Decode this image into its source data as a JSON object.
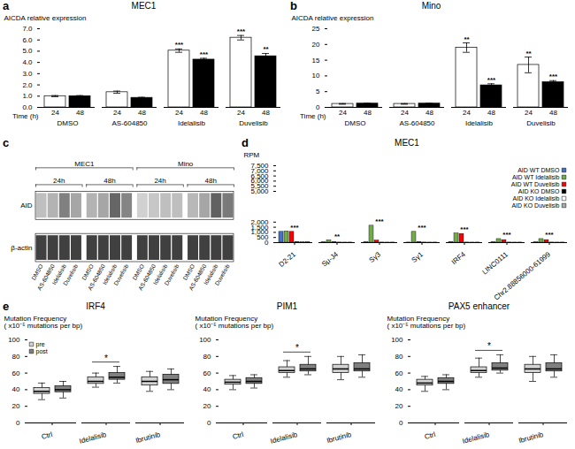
{
  "chart_data": [
    {
      "type": "bar",
      "panel_label": "a",
      "title": "MEC1",
      "ylabel": "AICDA relative expression",
      "xlabel": "Time (h)",
      "categories": [
        "DMSO",
        "AS-604850",
        "Idelalisib",
        "Duvelisib"
      ],
      "series": [
        {
          "name": "24",
          "color": "#FFFFFF",
          "values": [
            1.0,
            1.35,
            5.05,
            6.2
          ],
          "errors": [
            0.05,
            0.1,
            0.15,
            0.2
          ],
          "significance": [
            null,
            null,
            "***",
            "***"
          ]
        },
        {
          "name": "48",
          "color": "#000000",
          "values": [
            1.0,
            0.85,
            4.25,
            4.55
          ],
          "errors": [
            0.05,
            0.05,
            0.12,
            0.25
          ],
          "significance": [
            null,
            null,
            "***",
            "**"
          ]
        }
      ],
      "ylim": [
        0,
        7
      ],
      "yticks": [
        0,
        1,
        2,
        3,
        4,
        5,
        6,
        7
      ]
    },
    {
      "type": "bar",
      "panel_label": "b",
      "title": "Mino",
      "ylabel": "AICDA relative expression",
      "xlabel": "Time (h)",
      "categories": [
        "DMSO",
        "AS-604850",
        "Idelalisib",
        "Duvelisib"
      ],
      "series": [
        {
          "name": "24",
          "color": "#FFFFFF",
          "values": [
            1.1,
            1.1,
            19.0,
            13.5
          ],
          "errors": [
            0.1,
            0.1,
            1.5,
            2.5
          ],
          "significance": [
            null,
            null,
            "**",
            "**"
          ]
        },
        {
          "name": "48",
          "color": "#000000",
          "values": [
            1.2,
            1.2,
            7.0,
            8.0
          ],
          "errors": [
            0.1,
            0.1,
            0.5,
            0.5
          ],
          "significance": [
            null,
            null,
            "***",
            "***"
          ]
        }
      ],
      "ylim": [
        0,
        25
      ],
      "yticks": [
        0,
        5,
        10,
        15,
        20,
        25
      ]
    },
    {
      "type": "blot",
      "panel_label": "c",
      "groups": [
        {
          "name": "MEC1",
          "times": [
            "24h",
            "48h"
          ]
        },
        {
          "name": "Mino",
          "times": [
            "24h",
            "48h"
          ]
        }
      ],
      "lanes": [
        "DMSO",
        "AS-604850",
        "Idelalisib",
        "Duvelisib"
      ],
      "bands": [
        {
          "name": "AID",
          "intensities": [
            [
              0.75,
              0.7,
              0.5,
              0.65
            ],
            [
              0.7,
              0.65,
              0.4,
              0.52
            ],
            [
              0.82,
              0.78,
              0.75,
              0.75
            ],
            [
              0.72,
              0.65,
              0.38,
              0.48
            ]
          ]
        },
        {
          "name": "β-actin",
          "intensities": [
            [
              0.25,
              0.25,
              0.25,
              0.25
            ],
            [
              0.25,
              0.25,
              0.25,
              0.25
            ],
            [
              0.25,
              0.25,
              0.25,
              0.25
            ],
            [
              0.25,
              0.25,
              0.25,
              0.25
            ]
          ]
        }
      ],
      "intensity_range": [
        0,
        1
      ]
    },
    {
      "type": "bar",
      "panel_label": "d",
      "title": "MEC1",
      "ylabel": "RPM",
      "categories": [
        "D2-21",
        "Sμ-J4",
        "Sγ3",
        "Sγ1",
        "IRF4",
        "LINC0111",
        "Chr2.88856000-61999"
      ],
      "series": [
        {
          "name": "AID WT DMSO",
          "color": "#4472C4",
          "values": [
            1050,
            20,
            30,
            10,
            50,
            30,
            20
          ]
        },
        {
          "name": "AID WT Idelalisib",
          "color": "#70AD47",
          "values": [
            1100,
            230,
            1650,
            1050,
            900,
            350,
            350
          ]
        },
        {
          "name": "AID WT Duvelisib",
          "color": "#FF0000",
          "values": [
            1050,
            60,
            200,
            60,
            850,
            250,
            250
          ]
        },
        {
          "name": "AID KO DMSO",
          "color": "#000000",
          "values": [
            50,
            10,
            10,
            10,
            10,
            10,
            10
          ]
        },
        {
          "name": "AID KO Idelalisib",
          "color": "#FFFFFF",
          "values": [
            50,
            10,
            10,
            10,
            10,
            10,
            10
          ]
        },
        {
          "name": "AID KO Duvelisib",
          "color": "#AAAAAA",
          "values": [
            50,
            10,
            10,
            10,
            10,
            10,
            10
          ]
        }
      ],
      "significance": [
        "***",
        "**",
        "***",
        "***",
        "***",
        "***",
        "***"
      ],
      "ylim": [
        0,
        7500
      ],
      "yticks": [
        0,
        500,
        1000,
        1500,
        2000,
        5000,
        5500,
        6000,
        6500,
        7000,
        7500
      ],
      "legend": "upper right"
    },
    {
      "type": "box",
      "panel_label": "e",
      "title": "IRF4",
      "ylabel": "Mutation Frequency\n( x10⁻⁵ mutations per bp)",
      "categories": [
        "Ctrl",
        "Idelalisib",
        "Ibrutinib"
      ],
      "series": [
        {
          "name": "pre",
          "color": "#d3d3d3",
          "q1": [
            35,
            47,
            45
          ],
          "median": [
            38,
            50,
            50
          ],
          "q3": [
            42,
            55,
            55
          ],
          "min": [
            28,
            43,
            38
          ],
          "max": [
            48,
            60,
            62
          ]
        },
        {
          "name": "post",
          "color": "#808080",
          "q1": [
            37,
            52,
            47
          ],
          "median": [
            40,
            55,
            52
          ],
          "q3": [
            44,
            60,
            58
          ],
          "min": [
            30,
            48,
            40
          ],
          "max": [
            50,
            68,
            65
          ]
        }
      ],
      "significance": [
        null,
        "*",
        null
      ],
      "ylim": [
        0,
        100
      ],
      "yticks": [
        0,
        20,
        40,
        60,
        80,
        100
      ],
      "legend": "upper left"
    },
    {
      "type": "box",
      "title": "PIM1",
      "ylabel": "Mutation Frequency\n( x10⁻⁵ mutations per bp)",
      "categories": [
        "Ctrl",
        "Idelalisib",
        "Ibrutinib"
      ],
      "series": [
        {
          "name": "pre",
          "color": "#d3d3d3",
          "q1": [
            46,
            60,
            60
          ],
          "median": [
            49,
            63,
            65
          ],
          "q3": [
            52,
            67,
            70
          ],
          "min": [
            40,
            55,
            52
          ],
          "max": [
            57,
            75,
            80
          ]
        },
        {
          "name": "post",
          "color": "#808080",
          "q1": [
            47,
            62,
            62
          ],
          "median": [
            50,
            65,
            65
          ],
          "q3": [
            54,
            70,
            72
          ],
          "min": [
            42,
            58,
            55
          ],
          "max": [
            58,
            80,
            82
          ]
        }
      ],
      "significance": [
        null,
        "*",
        null
      ],
      "ylim": [
        0,
        100
      ],
      "yticks": [
        0,
        20,
        40,
        60,
        80,
        100
      ]
    },
    {
      "type": "box",
      "title": "PAX5 enhancer",
      "ylabel": "Mutation Frequency\n( x10⁻⁵ mutations per bp)",
      "categories": [
        "Ctrl",
        "Idelalisib",
        "Ibrutinib"
      ],
      "series": [
        {
          "name": "pre",
          "color": "#d3d3d3",
          "q1": [
            45,
            60,
            60
          ],
          "median": [
            48,
            63,
            65
          ],
          "q3": [
            52,
            67,
            70
          ],
          "min": [
            38,
            55,
            50
          ],
          "max": [
            56,
            78,
            80
          ]
        },
        {
          "name": "post",
          "color": "#808080",
          "q1": [
            47,
            63,
            62
          ],
          "median": [
            50,
            66,
            65
          ],
          "q3": [
            54,
            72,
            72
          ],
          "min": [
            40,
            60,
            55
          ],
          "max": [
            58,
            82,
            82
          ]
        }
      ],
      "significance": [
        null,
        "*",
        null
      ],
      "ylim": [
        0,
        100
      ],
      "yticks": [
        0,
        20,
        40,
        60,
        80,
        100
      ]
    }
  ]
}
